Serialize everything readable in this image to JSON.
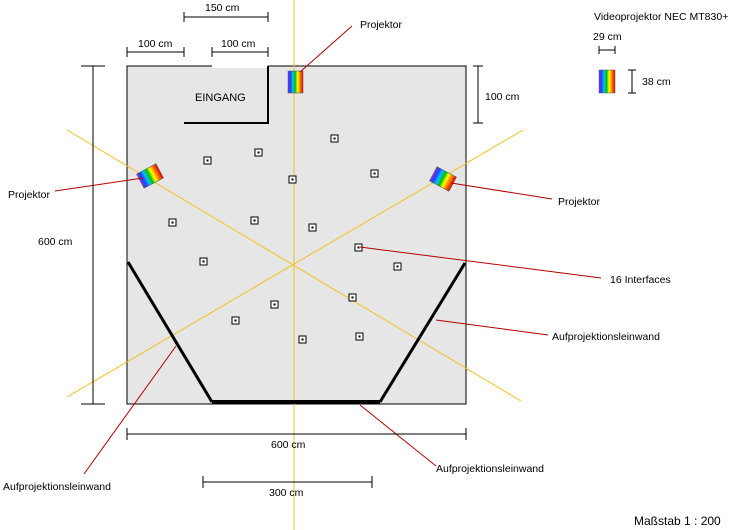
{
  "labels": {
    "projector_top": "Projektor",
    "projector_left": "Projektor",
    "projector_right": "Projektor",
    "interfaces": "16 Interfaces",
    "screen_right": "Aufprojektionsleinwand",
    "screen_left": "Aufprojektionsleinwand",
    "screen_bottom": "Aufprojektionsleinwand",
    "entrance": "EINGANG",
    "scale": "Maßstab 1 : 200"
  },
  "dimensions": {
    "dim_150": "150 cm",
    "dim_100_a": "100 cm",
    "dim_100_b": "100 cm",
    "dim_100_right": "100 cm",
    "dim_600_vertical": "600 cm",
    "dim_600_horizontal": "600 cm",
    "dim_300": "300 cm"
  },
  "legend": {
    "title": "Videoprojektor NEC MT830+",
    "width": "29 cm",
    "height": "38 cm"
  },
  "colors": {
    "room_fill": "#e6e6e6",
    "beam": "#f2c21c",
    "leader": "#b40000",
    "wall": "#000000"
  },
  "interfaces_count": 16
}
